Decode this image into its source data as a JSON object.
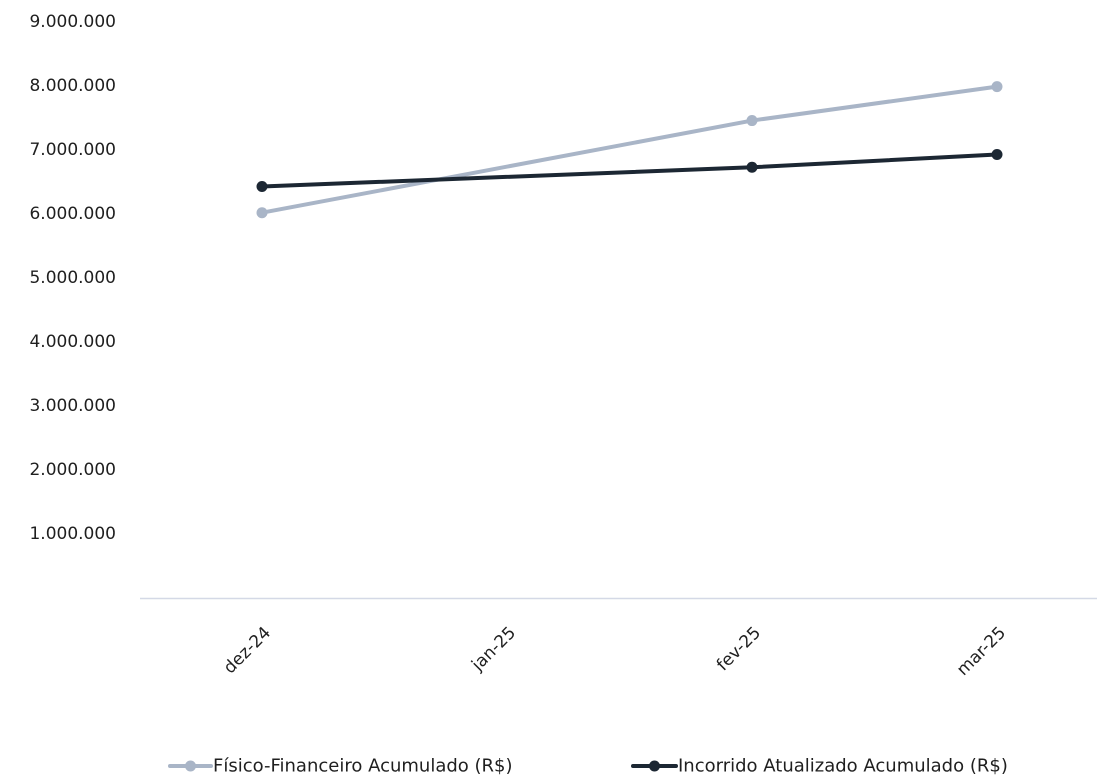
{
  "chart_data": {
    "type": "line",
    "title": "",
    "xlabel": "",
    "ylabel": "",
    "categories": [
      "dez-24",
      "jan-25",
      "fev-25",
      "mar-25"
    ],
    "ylim": [
      0,
      9000000
    ],
    "y_ticks": [
      1000000,
      2000000,
      3000000,
      4000000,
      5000000,
      6000000,
      7000000,
      8000000,
      9000000
    ],
    "y_tick_labels": [
      "1.000.000",
      "2.000.000",
      "3.000.000",
      "4.000.000",
      "5.000.000",
      "6.000.000",
      "7.000.000",
      "8.000.000",
      "9.000.000"
    ],
    "grid": false,
    "legend_position": "bottom",
    "series": [
      {
        "name": "Físico-Financeiro Acumulado (R$)",
        "color": "#a9b5c7",
        "points": [
          {
            "category": "dez-24",
            "value": 6020000
          },
          {
            "category": "fev-25",
            "value": 7460000
          },
          {
            "category": "mar-25",
            "value": 7990000
          }
        ]
      },
      {
        "name": "Incorrido Atualizado Acumulado (R$)",
        "color": "#1c2733",
        "points": [
          {
            "category": "dez-24",
            "value": 6430000
          },
          {
            "category": "fev-25",
            "value": 6730000
          },
          {
            "category": "mar-25",
            "value": 6930000
          }
        ]
      }
    ],
    "axis_color": "#d4d9e6"
  }
}
